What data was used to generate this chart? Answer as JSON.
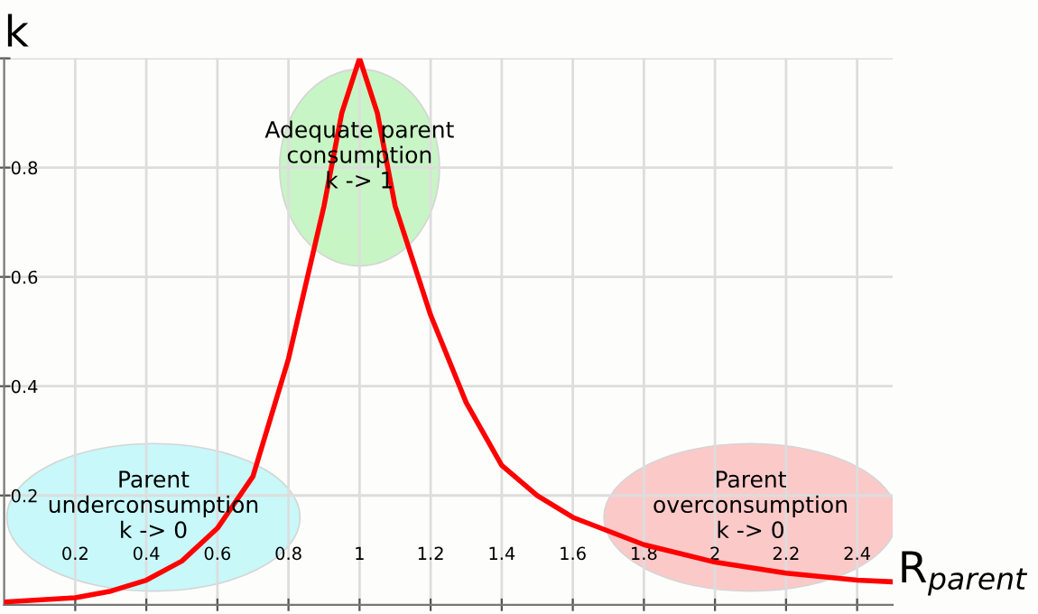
{
  "chart_data": {
    "type": "line",
    "xlabel": "R$_{parent}$",
    "ylabel": "k",
    "xlim": [
      0,
      2.5
    ],
    "ylim": [
      0,
      1
    ],
    "xticks": [
      0.2,
      0.4,
      0.6,
      0.8,
      1,
      1.2,
      1.4,
      1.6,
      1.8,
      2,
      2.2,
      2.4
    ],
    "yticks": [
      0.2,
      0.4,
      0.6,
      0.8,
      {
        "value": 1,
        "label": null
      }
    ],
    "grid": true,
    "marker": "none",
    "line_style": "solid",
    "series": [
      {
        "color": "#ff0000",
        "x": [
          0,
          0.2,
          0.3,
          0.4,
          0.5,
          0.6,
          0.7,
          0.8,
          0.9,
          0.95,
          1,
          1.05,
          1.1,
          1.2,
          1.3,
          1.4,
          1.5,
          1.6,
          1.8,
          2,
          2.2,
          2.4,
          2.5
        ],
        "values": [
          0.005,
          0.013,
          0.025,
          0.045,
          0.08,
          0.14,
          0.235,
          0.45,
          0.73,
          0.9,
          1,
          0.9,
          0.73,
          0.53,
          0.37,
          0.255,
          0.2,
          0.16,
          0.11,
          0.078,
          0.058,
          0.045,
          0.042
        ]
      }
    ],
    "annotations": [
      "Parent\nunderconsumption\nk -> 0",
      "Adequate parent\nconsumption\nk -> 1",
      "Parent\noverconsumption\nk -> 0"
    ]
  }
}
